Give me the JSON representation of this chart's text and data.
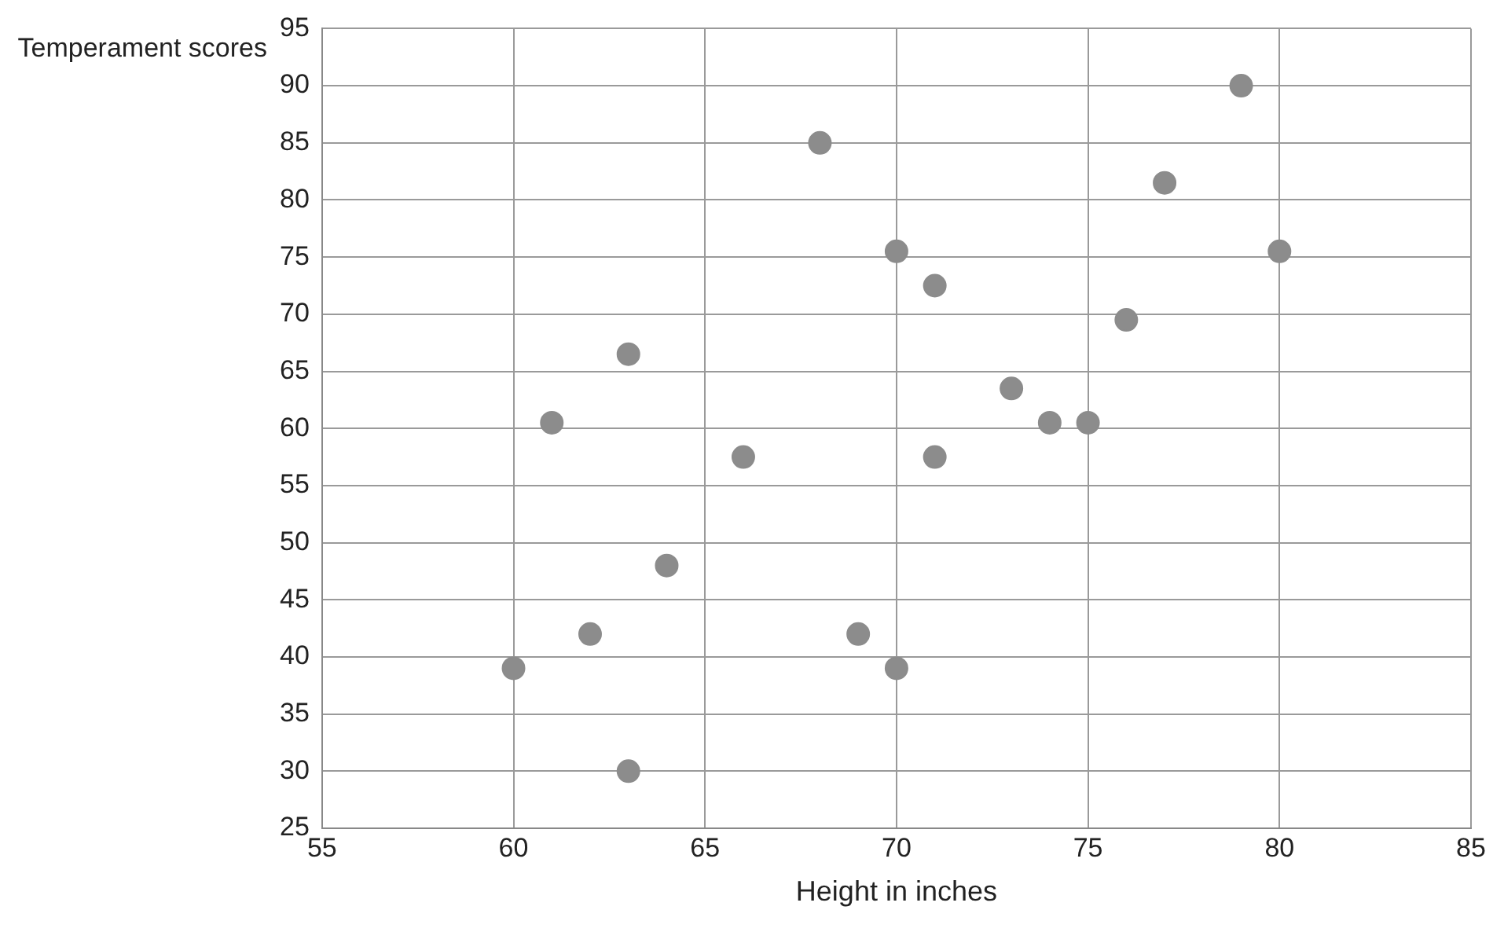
{
  "chart_data": {
    "type": "scatter",
    "xlabel": "Height in inches",
    "ylabel": "Temperament scores",
    "x": [
      60,
      61,
      62,
      63,
      63,
      64,
      66,
      68,
      69,
      70,
      70,
      71,
      71,
      73,
      74,
      75,
      76,
      77,
      79,
      80
    ],
    "series": [
      {
        "color": "#8c8c8c",
        "values": [
          39,
          60.5,
          42,
          66.5,
          30,
          48,
          57.5,
          85,
          42,
          39,
          75.5,
          72.5,
          57.5,
          63.5,
          60.5,
          60.5,
          69.5,
          81.5,
          90,
          75.5
        ]
      }
    ],
    "xlim": [
      55,
      85
    ],
    "xticks": [
      55,
      60,
      65,
      70,
      75,
      80,
      85
    ],
    "ylim": [
      25,
      95
    ],
    "yticks": [
      25,
      30,
      35,
      40,
      45,
      50,
      55,
      60,
      65,
      70,
      75,
      80,
      85,
      90,
      95
    ],
    "grid": true,
    "legend": false,
    "marker": "circle"
  }
}
